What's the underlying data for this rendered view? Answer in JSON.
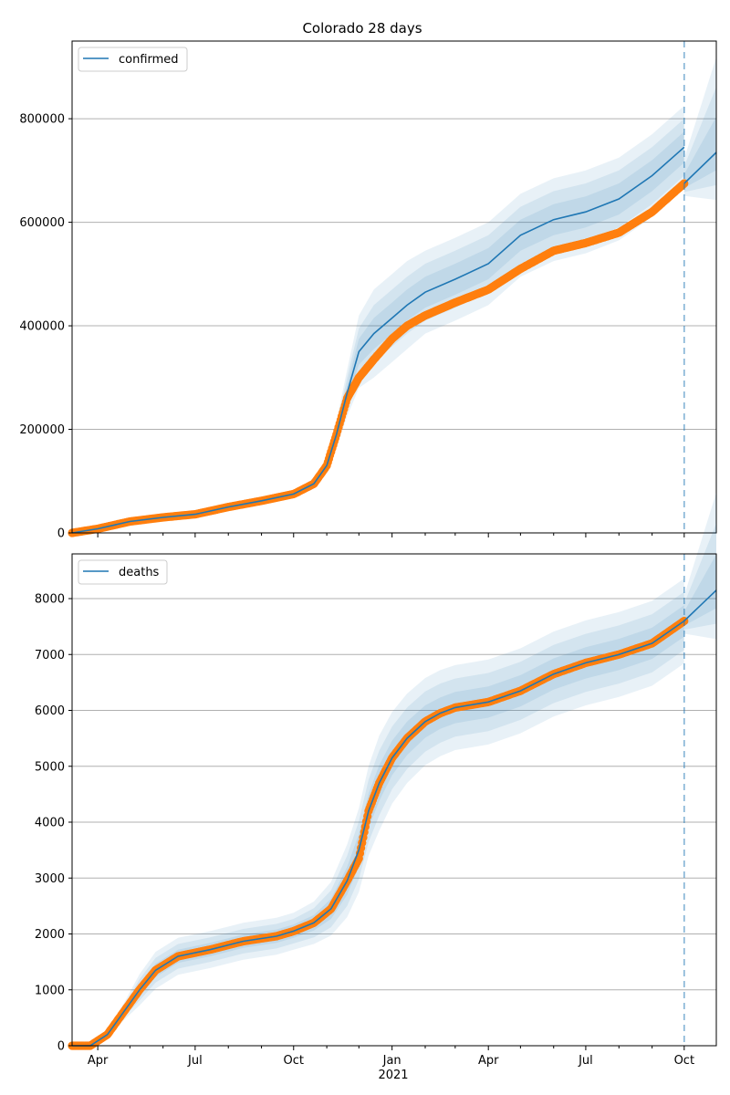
{
  "chart_data": [
    {
      "type": "line",
      "title": "Colorado 28 days",
      "xlabel": "",
      "ylabel": "",
      "ylim": [
        0,
        950000
      ],
      "y_ticks": [
        0,
        200000,
        400000,
        600000,
        800000
      ],
      "y_tick_labels": [
        "0",
        "200000",
        "400000",
        "600000",
        "800000"
      ],
      "x_range": [
        "2020-03-08",
        "2021-10-31"
      ],
      "forecast_start": "2021-10-01",
      "grid": "horizontal",
      "legend": "top-left",
      "series": [
        {
          "name": "confirmed",
          "role": "model",
          "color": "#1f77b4",
          "x": [
            "2020-03-08",
            "2020-04-01",
            "2020-05-01",
            "2020-06-01",
            "2020-07-01",
            "2020-08-01",
            "2020-09-01",
            "2020-10-01",
            "2020-10-20",
            "2020-11-01",
            "2020-11-10",
            "2020-11-20",
            "2020-12-01",
            "2020-12-15",
            "2021-01-01",
            "2021-01-15",
            "2021-02-01",
            "2021-03-01",
            "2021-04-01",
            "2021-05-01",
            "2021-06-01",
            "2021-07-01",
            "2021-08-01",
            "2021-09-01",
            "2021-10-01"
          ],
          "y": [
            0,
            8000,
            22000,
            30000,
            36000,
            50000,
            62000,
            75000,
            95000,
            130000,
            190000,
            270000,
            350000,
            385000,
            415000,
            440000,
            465000,
            490000,
            520000,
            575000,
            605000,
            620000,
            645000,
            690000,
            745000
          ]
        },
        {
          "name": "observed confirmed",
          "role": "observed",
          "color": "#ff7f0e",
          "x": [
            "2020-03-08",
            "2020-04-01",
            "2020-05-01",
            "2020-06-01",
            "2020-07-01",
            "2020-08-01",
            "2020-09-01",
            "2020-10-01",
            "2020-10-20",
            "2020-11-01",
            "2020-11-10",
            "2020-11-20",
            "2020-12-01",
            "2020-12-15",
            "2021-01-01",
            "2021-01-15",
            "2021-02-01",
            "2021-03-01",
            "2021-04-01",
            "2021-05-01",
            "2021-06-01",
            "2021-07-01",
            "2021-08-01",
            "2021-09-01",
            "2021-10-01"
          ],
          "y": [
            0,
            8000,
            22000,
            30000,
            36000,
            50000,
            62000,
            75000,
            95000,
            130000,
            190000,
            260000,
            300000,
            335000,
            375000,
            400000,
            420000,
            445000,
            470000,
            510000,
            545000,
            560000,
            580000,
            620000,
            675000
          ]
        },
        {
          "name": "forecast confirmed",
          "role": "forecast",
          "color": "#1f77b4",
          "x": [
            "2021-10-01",
            "2021-10-31"
          ],
          "y": [
            675000,
            735000
          ]
        }
      ],
      "bands": [
        {
          "level": "outer",
          "spread": [
            0,
            1000,
            2000,
            3000,
            4000,
            5000,
            6000,
            7000,
            10000,
            15000,
            25000,
            45000,
            70000,
            85000,
            85000,
            85000,
            80000,
            80000,
            80000,
            80000,
            80000,
            80000,
            80000,
            80000,
            80000
          ]
        },
        {
          "level": "middle",
          "spread": [
            0,
            700,
            1400,
            2000,
            2800,
            3500,
            4000,
            5000,
            7000,
            10000,
            17000,
            30000,
            45000,
            55000,
            55000,
            55000,
            55000,
            55000,
            55000,
            55000,
            55000,
            55000,
            55000,
            55000,
            55000
          ]
        },
        {
          "level": "inner",
          "spread": [
            0,
            400,
            800,
            1200,
            1600,
            2000,
            2500,
            3000,
            4000,
            6000,
            9000,
            16000,
            25000,
            30000,
            30000,
            30000,
            30000,
            30000,
            30000,
            30000,
            30000,
            30000,
            30000,
            30000,
            30000
          ]
        }
      ]
    },
    {
      "type": "line",
      "title": "",
      "xlabel": "",
      "ylabel": "",
      "ylim": [
        0,
        8800
      ],
      "y_ticks": [
        0,
        1000,
        2000,
        3000,
        4000,
        5000,
        6000,
        7000,
        8000
      ],
      "y_tick_labels": [
        "0",
        "1000",
        "2000",
        "3000",
        "4000",
        "5000",
        "6000",
        "7000",
        "8000"
      ],
      "x_range": [
        "2020-03-08",
        "2021-10-31"
      ],
      "x_tick_labels": [
        "Apr",
        "Jul",
        "Oct",
        "Jan",
        "Apr",
        "Jul",
        "Oct"
      ],
      "x_year_label": "2021",
      "forecast_start": "2021-10-01",
      "grid": "horizontal",
      "legend": "top-left",
      "series": [
        {
          "name": "deaths",
          "role": "model",
          "color": "#1f77b4",
          "x": [
            "2020-03-08",
            "2020-03-25",
            "2020-04-10",
            "2020-04-25",
            "2020-05-10",
            "2020-05-25",
            "2020-06-15",
            "2020-07-15",
            "2020-08-15",
            "2020-09-15",
            "2020-10-01",
            "2020-10-20",
            "2020-11-05",
            "2020-11-20",
            "2020-12-01",
            "2020-12-10",
            "2020-12-20",
            "2021-01-01",
            "2021-01-15",
            "2021-02-01",
            "2021-02-15",
            "2021-03-01",
            "2021-04-01",
            "2021-05-01",
            "2021-06-01",
            "2021-07-01",
            "2021-08-01",
            "2021-09-01",
            "2021-10-01"
          ],
          "y": [
            0,
            0,
            200,
            600,
            1000,
            1350,
            1600,
            1720,
            1870,
            1960,
            2050,
            2200,
            2450,
            2950,
            3500,
            4200,
            4700,
            5150,
            5500,
            5800,
            5950,
            6050,
            6150,
            6350,
            6650,
            6850,
            7000,
            7200,
            7600
          ]
        },
        {
          "name": "observed deaths",
          "role": "observed",
          "color": "#ff7f0e",
          "x": [
            "2020-03-08",
            "2020-03-25",
            "2020-04-10",
            "2020-04-25",
            "2020-05-10",
            "2020-05-25",
            "2020-06-15",
            "2020-07-15",
            "2020-08-15",
            "2020-09-15",
            "2020-10-01",
            "2020-10-20",
            "2020-11-05",
            "2020-11-20",
            "2020-12-01",
            "2020-12-10",
            "2020-12-20",
            "2021-01-01",
            "2021-01-15",
            "2021-02-01",
            "2021-02-15",
            "2021-03-01",
            "2021-04-01",
            "2021-05-01",
            "2021-06-01",
            "2021-07-01",
            "2021-08-01",
            "2021-09-01",
            "2021-10-01"
          ],
          "y": [
            0,
            0,
            200,
            600,
            1000,
            1350,
            1600,
            1720,
            1870,
            1960,
            2050,
            2200,
            2450,
            2950,
            3350,
            4200,
            4700,
            5150,
            5500,
            5800,
            5950,
            6050,
            6150,
            6350,
            6650,
            6850,
            7000,
            7200,
            7600
          ]
        },
        {
          "name": "forecast deaths",
          "role": "forecast",
          "color": "#1f77b4",
          "x": [
            "2021-10-01",
            "2021-10-31"
          ],
          "y": [
            7600,
            8150
          ]
        }
      ],
      "bands": [
        {
          "level": "outer",
          "spread": [
            0,
            0,
            60,
            150,
            280,
            330,
            330,
            330,
            330,
            330,
            330,
            380,
            480,
            650,
            750,
            800,
            850,
            820,
            800,
            780,
            770,
            760,
            760,
            760,
            760,
            760,
            760,
            760,
            760
          ]
        },
        {
          "level": "middle",
          "spread": [
            0,
            0,
            40,
            100,
            190,
            220,
            220,
            220,
            220,
            220,
            220,
            260,
            330,
            450,
            520,
            560,
            580,
            560,
            550,
            540,
            530,
            520,
            520,
            520,
            520,
            520,
            520,
            520,
            520
          ]
        },
        {
          "level": "inner",
          "spread": [
            0,
            0,
            20,
            50,
            100,
            120,
            120,
            120,
            120,
            120,
            120,
            140,
            180,
            250,
            290,
            310,
            320,
            310,
            300,
            290,
            280,
            280,
            280,
            280,
            280,
            280,
            280,
            280,
            280
          ]
        }
      ]
    }
  ]
}
